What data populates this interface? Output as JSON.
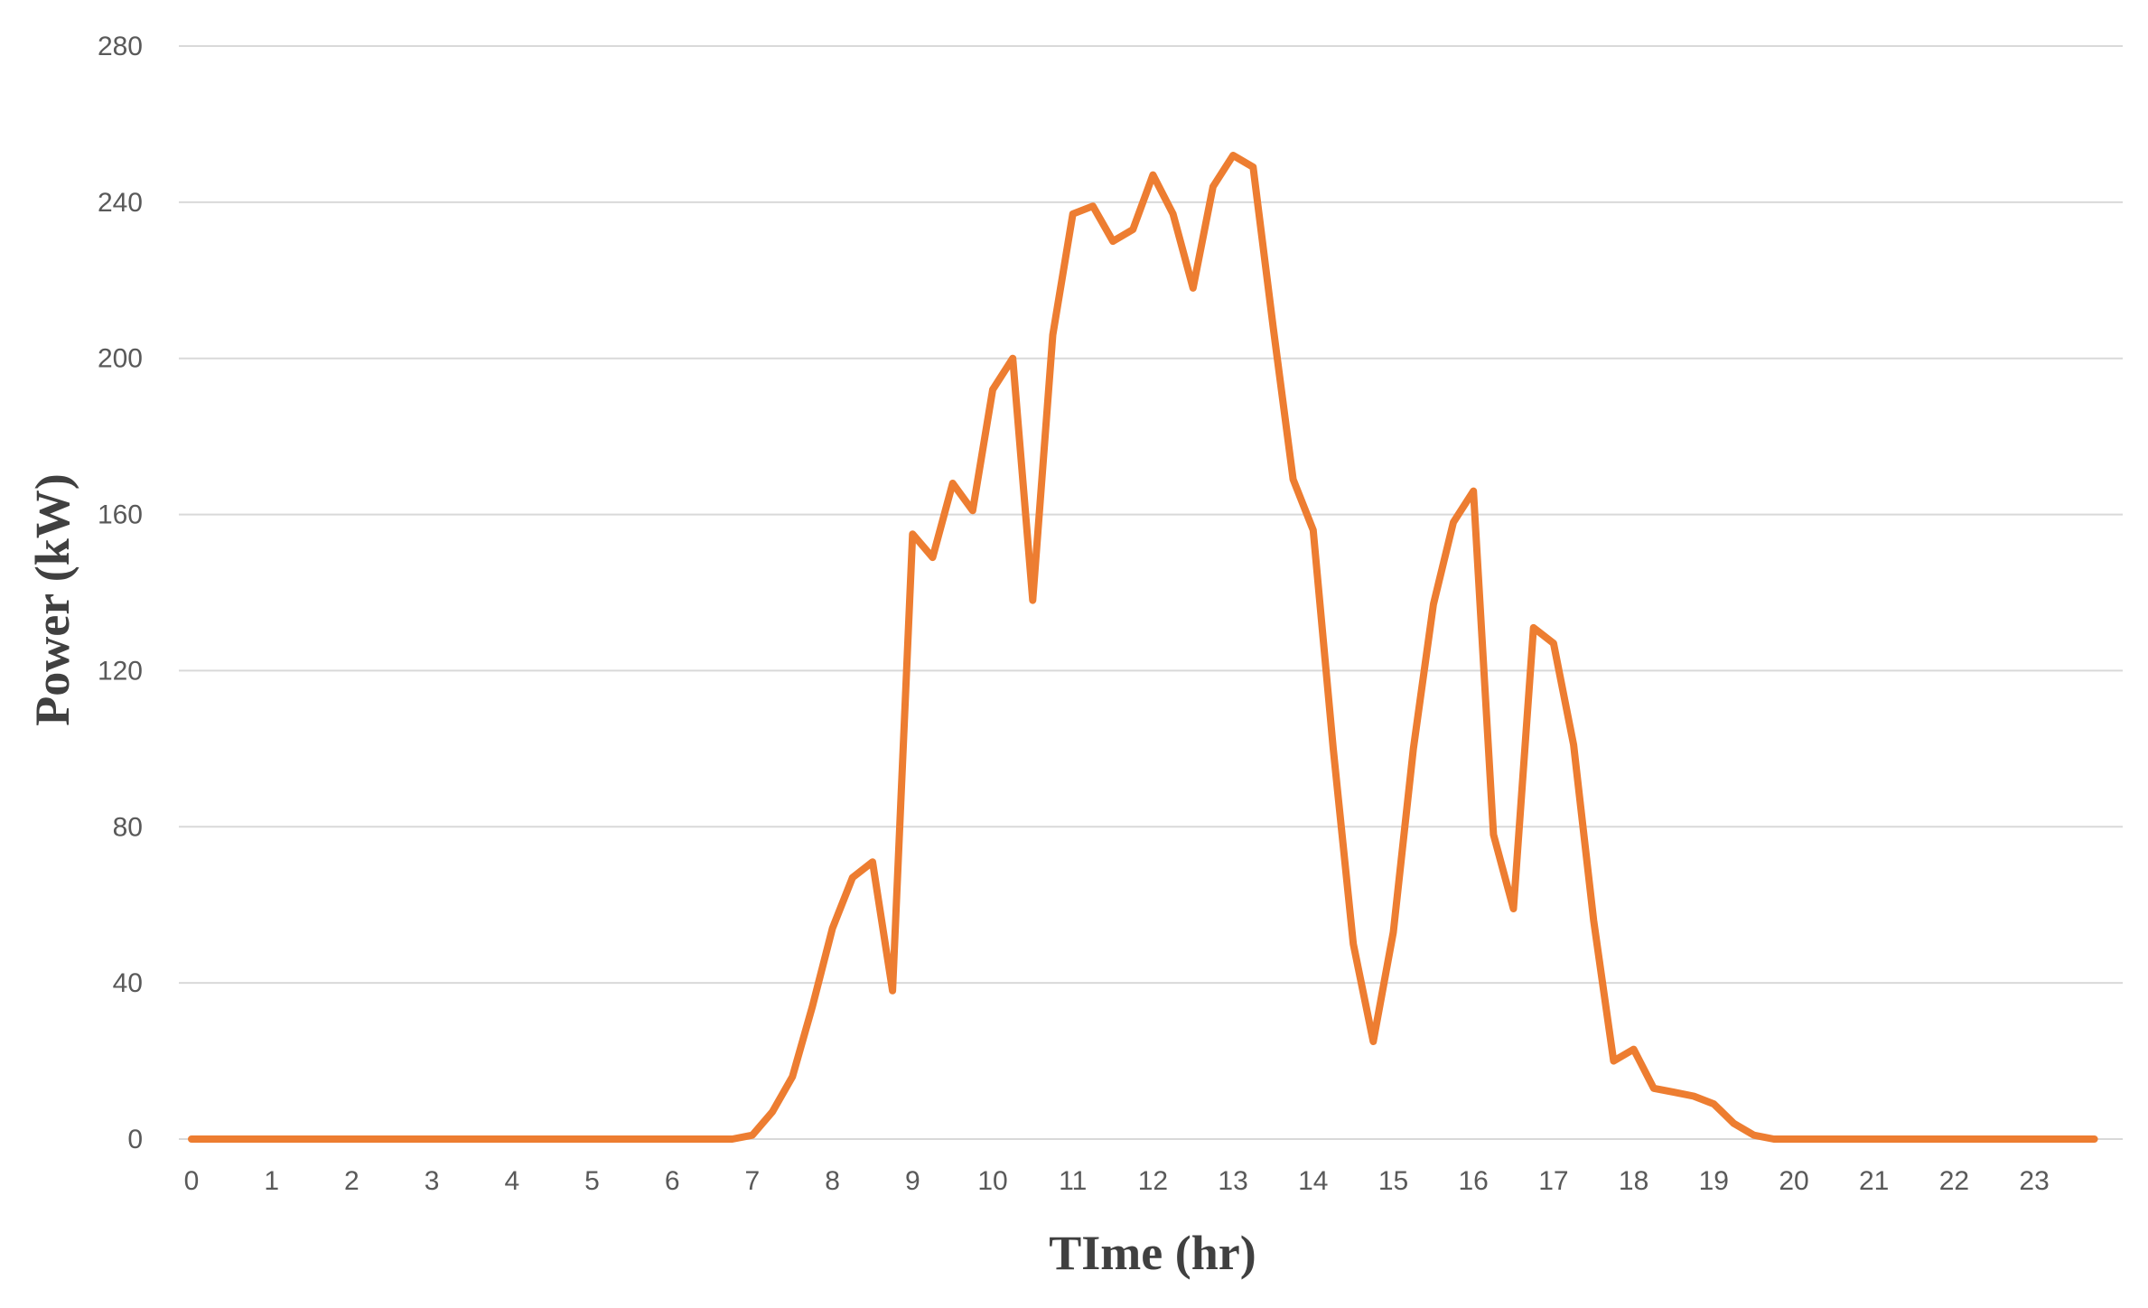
{
  "chart_data": {
    "type": "line",
    "title": "",
    "xlabel": "TIme (hr)",
    "ylabel": "Power (kW)",
    "xlim": [
      0,
      24
    ],
    "ylim": [
      0,
      280
    ],
    "x_ticks": [
      "0",
      "1",
      "2",
      "3",
      "4",
      "5",
      "6",
      "7",
      "8",
      "9",
      "10",
      "11",
      "12",
      "13",
      "14",
      "15",
      "16",
      "17",
      "18",
      "19",
      "20",
      "21",
      "22",
      "23"
    ],
    "y_ticks": [
      "0",
      "40",
      "80",
      "120",
      "160",
      "200",
      "240",
      "280"
    ],
    "grid": true,
    "legend": "none",
    "series": [
      {
        "color": "#ed7d31",
        "x": [
          0,
          6.75,
          7,
          7.25,
          7.5,
          7.75,
          8,
          8.25,
          8.5,
          8.75,
          9,
          9.25,
          9.5,
          9.75,
          10,
          10.25,
          10.5,
          10.75,
          11,
          11.25,
          11.5,
          11.75,
          12,
          12.25,
          12.5,
          12.75,
          13,
          13.25,
          13.5,
          13.75,
          14,
          14.25,
          14.5,
          14.75,
          15,
          15.25,
          15.5,
          15.75,
          16,
          16.25,
          16.5,
          16.75,
          17,
          17.25,
          17.5,
          17.75,
          18,
          18.25,
          18.5,
          18.75,
          19,
          19.25,
          19.5,
          19.75,
          20,
          23.75
        ],
        "y": [
          0,
          0,
          1,
          7,
          16,
          34,
          54,
          67,
          71,
          38,
          155,
          149,
          168,
          161,
          192,
          200,
          138,
          206,
          237,
          239,
          230,
          233,
          247,
          237,
          218,
          244,
          252,
          249,
          208,
          169,
          156,
          100,
          50,
          25,
          53,
          100,
          137,
          158,
          166,
          78,
          59,
          131,
          127,
          101,
          56,
          20,
          23,
          13,
          12,
          11,
          9,
          4,
          1,
          0,
          0,
          0
        ]
      }
    ]
  }
}
